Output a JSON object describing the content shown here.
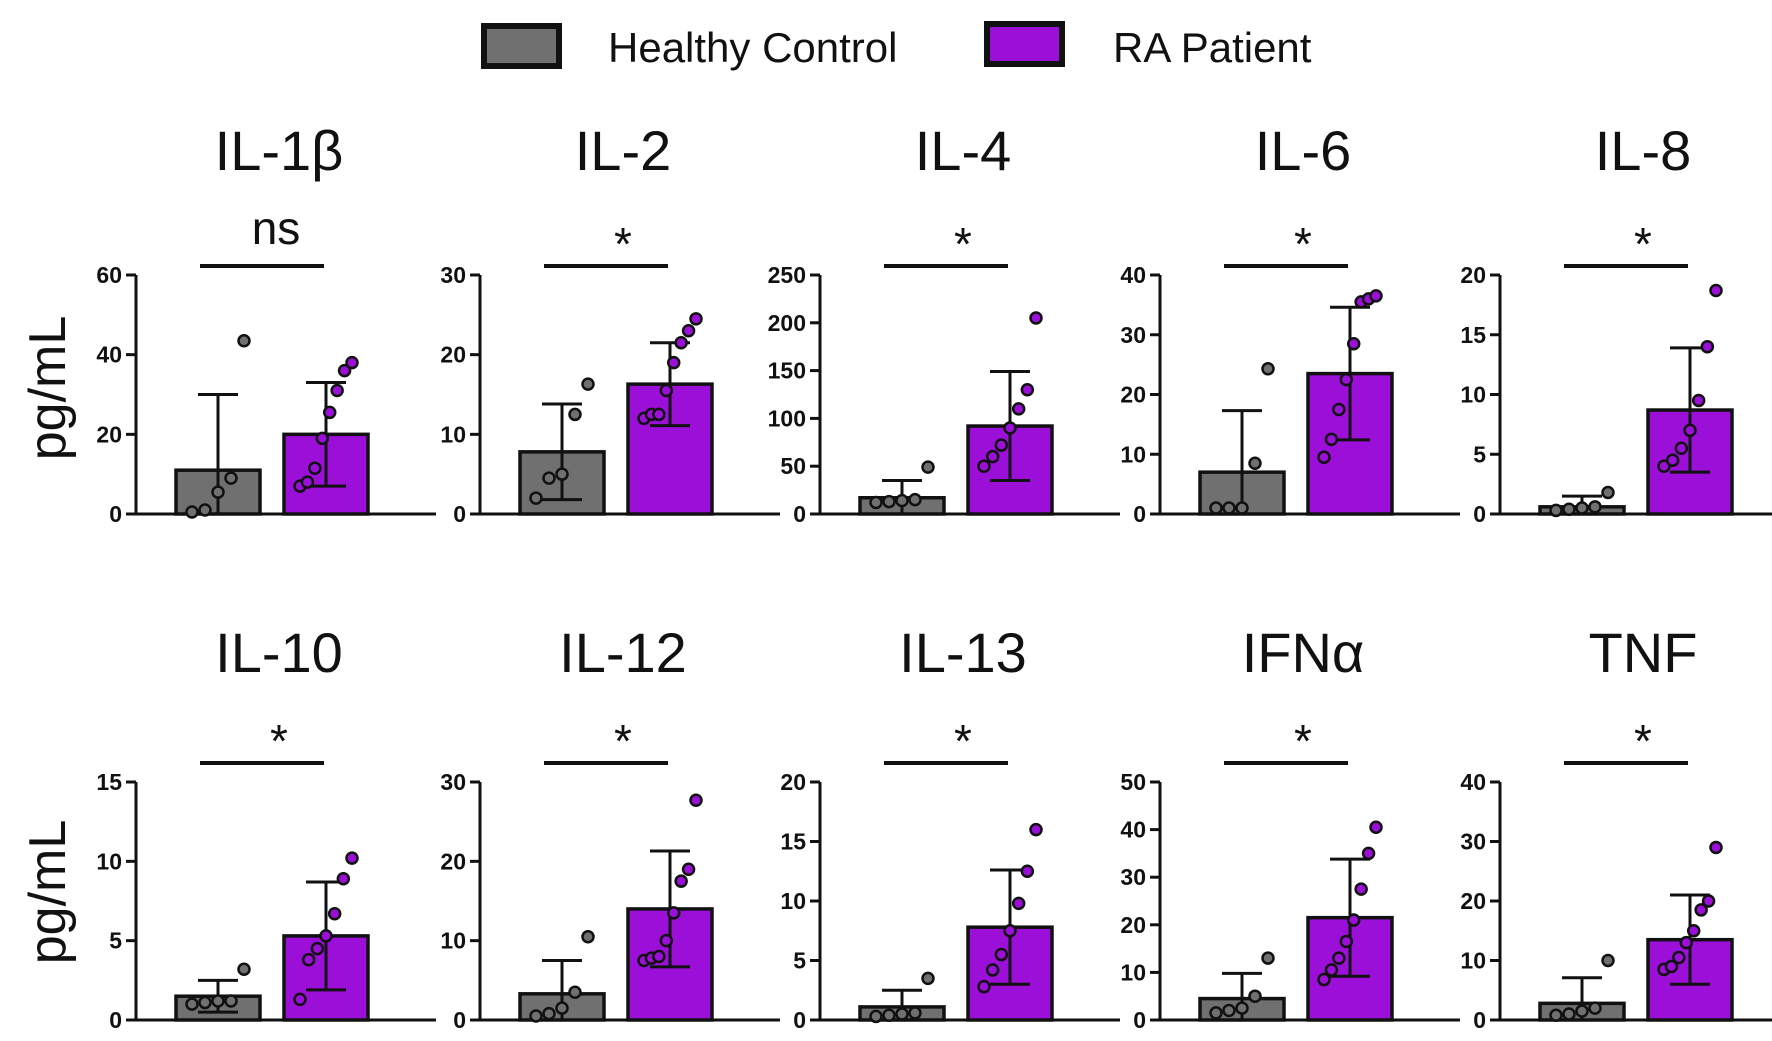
{
  "legend": {
    "healthy_label": "Healthy Control",
    "ra_label": "RA Patient"
  },
  "colors": {
    "healthy": "#707070",
    "ra": "#9b0fd9",
    "outline": "#111111"
  },
  "y_axis_label": "pg/mL",
  "chart_data": [
    {
      "type": "bar",
      "title": "IL-1β",
      "significance": "ns",
      "ylim": [
        0,
        60
      ],
      "yticks": [
        0,
        20,
        40,
        60
      ],
      "categories": [
        "Healthy Control",
        "RA Patient"
      ],
      "series": [
        {
          "name": "Healthy Control",
          "mean": 11,
          "sd": 19,
          "points": [
            0.5,
            1,
            5.5,
            9,
            43.5
          ]
        },
        {
          "name": "RA Patient",
          "mean": 20,
          "sd": 13,
          "points": [
            7,
            8,
            11.5,
            19,
            25.5,
            31,
            36,
            38
          ]
        }
      ]
    },
    {
      "type": "bar",
      "title": "IL-2",
      "significance": "*",
      "ylim": [
        0,
        30
      ],
      "yticks": [
        0,
        10,
        20,
        30
      ],
      "categories": [
        "Healthy Control",
        "RA Patient"
      ],
      "series": [
        {
          "name": "Healthy Control",
          "mean": 7.8,
          "sd": 6,
          "points": [
            2,
            4.5,
            5,
            12.5,
            16.3
          ]
        },
        {
          "name": "RA Patient",
          "mean": 16.3,
          "sd": 5.2,
          "points": [
            12,
            12.5,
            12.5,
            15.5,
            19,
            21.5,
            23,
            24.5
          ]
        }
      ]
    },
    {
      "type": "bar",
      "title": "IL-4",
      "significance": "*",
      "ylim": [
        0,
        250
      ],
      "yticks": [
        0,
        50,
        100,
        150,
        200,
        250
      ],
      "categories": [
        "Healthy Control",
        "RA Patient"
      ],
      "series": [
        {
          "name": "Healthy Control",
          "mean": 17,
          "sd": 18,
          "points": [
            12,
            13,
            14,
            15,
            49
          ]
        },
        {
          "name": "RA Patient",
          "mean": 92,
          "sd": 57,
          "points": [
            50,
            60,
            72,
            90,
            110,
            130,
            205
          ]
        }
      ]
    },
    {
      "type": "bar",
      "title": "IL-6",
      "significance": "*",
      "ylim": [
        0,
        40
      ],
      "yticks": [
        0,
        10,
        20,
        30,
        40
      ],
      "categories": [
        "Healthy Control",
        "RA Patient"
      ],
      "series": [
        {
          "name": "Healthy Control",
          "mean": 7,
          "sd": 10.3,
          "points": [
            1,
            1,
            1,
            8.5,
            24.3
          ]
        },
        {
          "name": "RA Patient",
          "mean": 23.5,
          "sd": 11.1,
          "points": [
            9.5,
            12.5,
            17.5,
            22.5,
            28.5,
            35.5,
            36,
            36.5
          ]
        }
      ]
    },
    {
      "type": "bar",
      "title": "IL-8",
      "significance": "*",
      "ylim": [
        0,
        20
      ],
      "yticks": [
        0,
        5,
        10,
        15,
        20
      ],
      "categories": [
        "Healthy Control",
        "RA Patient"
      ],
      "series": [
        {
          "name": "Healthy Control",
          "mean": 0.6,
          "sd": 0.9,
          "points": [
            0.3,
            0.4,
            0.5,
            0.6,
            1.8
          ]
        },
        {
          "name": "RA Patient",
          "mean": 8.7,
          "sd": 5.2,
          "points": [
            4,
            4.5,
            5.5,
            7,
            9.5,
            14,
            18.7
          ]
        }
      ]
    },
    {
      "type": "bar",
      "title": "IL-10",
      "significance": "*",
      "ylim": [
        0,
        15
      ],
      "yticks": [
        0,
        5,
        10,
        15
      ],
      "categories": [
        "Healthy Control",
        "RA Patient"
      ],
      "series": [
        {
          "name": "Healthy Control",
          "mean": 1.5,
          "sd": 1,
          "points": [
            1,
            1.1,
            1.2,
            1.2,
            3.2
          ]
        },
        {
          "name": "RA Patient",
          "mean": 5.3,
          "sd": 3.4,
          "points": [
            1.3,
            3.8,
            4.5,
            5.3,
            6.7,
            8.9,
            10.2
          ]
        }
      ]
    },
    {
      "type": "bar",
      "title": "IL-12",
      "significance": "*",
      "ylim": [
        0,
        30
      ],
      "yticks": [
        0,
        10,
        20,
        30
      ],
      "categories": [
        "Healthy Control",
        "RA Patient"
      ],
      "series": [
        {
          "name": "Healthy Control",
          "mean": 3.3,
          "sd": 4.2,
          "points": [
            0.5,
            0.8,
            1.5,
            3.5,
            10.5
          ]
        },
        {
          "name": "RA Patient",
          "mean": 14,
          "sd": 7.3,
          "points": [
            7.5,
            7.8,
            8,
            10,
            13.5,
            17.5,
            19,
            27.7
          ]
        }
      ]
    },
    {
      "type": "bar",
      "title": "IL-13",
      "significance": "*",
      "ylim": [
        0,
        20
      ],
      "yticks": [
        0,
        5,
        10,
        15,
        20
      ],
      "categories": [
        "Healthy Control",
        "RA Patient"
      ],
      "series": [
        {
          "name": "Healthy Control",
          "mean": 1.1,
          "sd": 1.4,
          "points": [
            0.3,
            0.4,
            0.5,
            0.6,
            3.5
          ]
        },
        {
          "name": "RA Patient",
          "mean": 7.8,
          "sd": 4.8,
          "points": [
            2.8,
            4.2,
            5.5,
            7.5,
            9.8,
            12.5,
            16
          ]
        }
      ]
    },
    {
      "type": "bar",
      "title": "IFNα",
      "significance": "*",
      "ylim": [
        0,
        50
      ],
      "yticks": [
        0,
        10,
        20,
        30,
        40,
        50
      ],
      "categories": [
        "Healthy Control",
        "RA Patient"
      ],
      "series": [
        {
          "name": "Healthy Control",
          "mean": 4.5,
          "sd": 5.3,
          "points": [
            1.5,
            2,
            2.5,
            5,
            13
          ]
        },
        {
          "name": "RA Patient",
          "mean": 21.5,
          "sd": 12.3,
          "points": [
            8.5,
            10.5,
            13,
            16.5,
            21,
            27.5,
            35,
            40.5
          ]
        }
      ]
    },
    {
      "type": "bar",
      "title": "TNF",
      "significance": "*",
      "ylim": [
        0,
        40
      ],
      "yticks": [
        0,
        10,
        20,
        30,
        40
      ],
      "categories": [
        "Healthy Control",
        "RA Patient"
      ],
      "series": [
        {
          "name": "Healthy Control",
          "mean": 2.8,
          "sd": 4.3,
          "points": [
            0.8,
            1,
            1.5,
            2,
            10
          ]
        },
        {
          "name": "RA Patient",
          "mean": 13.5,
          "sd": 7.5,
          "points": [
            8.5,
            9,
            10.5,
            13,
            15,
            18.5,
            20,
            29
          ]
        }
      ]
    }
  ]
}
